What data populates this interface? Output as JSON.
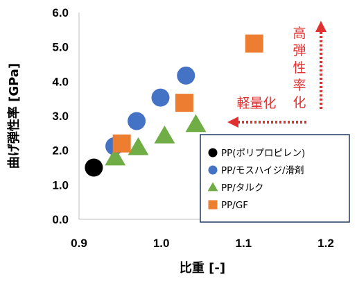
{
  "chart_data": {
    "type": "scatter",
    "xlabel": "比重 [-]",
    "ylabel": "曲げ弾性率 [GPa]",
    "xlim": [
      0.9,
      1.2
    ],
    "ylim": [
      0.0,
      6.0
    ],
    "xticks": [
      "0.9",
      "1.0",
      "1.1",
      "1.2"
    ],
    "yticks": [
      "0.0",
      "1.0",
      "2.0",
      "3.0",
      "4.0",
      "5.0",
      "6.0"
    ],
    "grid": false,
    "legend_position": "bottom-right",
    "series": [
      {
        "name": "PP(ポリプロピレン)",
        "marker": "circle",
        "color": "#000000",
        "points": [
          [
            0.918,
            1.5
          ]
        ]
      },
      {
        "name": "PP/モスハイジ/滑剤",
        "marker": "circle",
        "color": "#4472c4",
        "points": [
          [
            0.943,
            2.12
          ],
          [
            0.97,
            2.85
          ],
          [
            0.999,
            3.53
          ],
          [
            1.03,
            4.17
          ]
        ]
      },
      {
        "name": "PP/タルク",
        "marker": "triangle",
        "color": "#70ad47",
        "points": [
          [
            0.944,
            1.78
          ],
          [
            0.972,
            2.08
          ],
          [
            1.004,
            2.42
          ],
          [
            1.042,
            2.75
          ]
        ]
      },
      {
        "name": "PP/GF",
        "marker": "square",
        "color": "#ed7d31",
        "points": [
          [
            0.952,
            2.2
          ],
          [
            1.028,
            3.38
          ],
          [
            1.113,
            5.1
          ]
        ]
      }
    ],
    "annotations": [
      {
        "text": "軽量化",
        "arrow": "left",
        "color": "#e03030"
      },
      {
        "text": "高弾性率化",
        "arrow": "up",
        "color": "#e03030"
      }
    ]
  }
}
